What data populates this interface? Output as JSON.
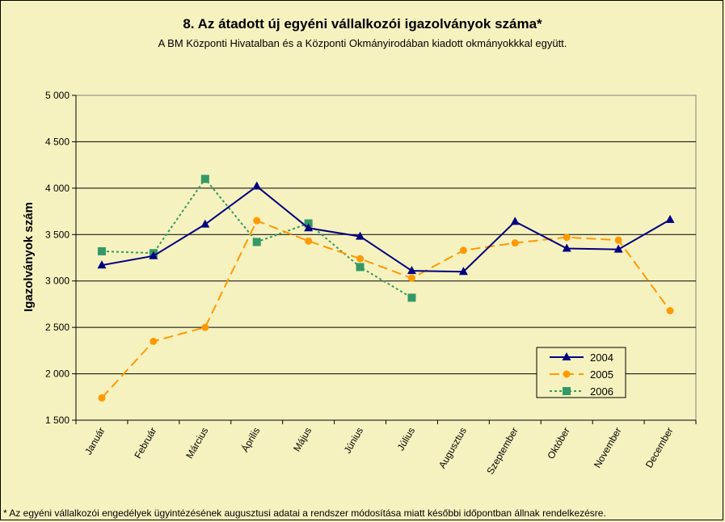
{
  "page": {
    "title": "8. Az átadott új egyéni vállalkozói  igazolványok száma*",
    "subtitle": "A BM Központi Hivatalban és a Központi Okmányirodában kiadott okmányokkkal együtt.",
    "footnote": "* Az egyéni vállalkozói engedélyek  ügyintézésének augusztusi adatai a rendszer módosítása miatt későbbi időpontban állnak rendelkezésre."
  },
  "chart_data": {
    "type": "line",
    "title": "8. Az átadott új egyéni vállalkozói  igazolványok száma*",
    "subtitle": "A BM Központi Hivatalban és a Központi Okmányirodában kiadott okmányokkkal együtt.",
    "xlabel": "",
    "ylabel": "Igazolványok szám",
    "ylim": [
      1500,
      5000
    ],
    "yticks": [
      1500,
      2000,
      2500,
      3000,
      3500,
      4000,
      4500,
      5000
    ],
    "ytick_labels": [
      "1 500",
      "2 000",
      "2 500",
      "3 000",
      "3 500",
      "4 000",
      "4 500",
      "5 000"
    ],
    "grid": true,
    "legend_position": "bottom-right",
    "plot_background": "#f6f2bf",
    "categories": [
      "Január",
      "Február",
      "Március",
      "Április",
      "Május",
      "Június",
      "Július",
      "Augusztus",
      "Szeptember",
      "Október",
      "November",
      "December"
    ],
    "series": [
      {
        "name": "2004",
        "color": "#000080",
        "marker": "triangle",
        "dash": "solid",
        "values": [
          3170,
          3270,
          3610,
          4020,
          3570,
          3480,
          3110,
          3100,
          3640,
          3350,
          3340,
          3660
        ]
      },
      {
        "name": "2005",
        "color": "#ff9900",
        "marker": "circle",
        "dash": "long-dash",
        "values": [
          1740,
          2350,
          2500,
          3650,
          3430,
          3240,
          3030,
          3330,
          3410,
          3470,
          3440,
          2680
        ]
      },
      {
        "name": "2006",
        "color": "#339966",
        "marker": "square",
        "dash": "dotted",
        "values": [
          3320,
          3300,
          4100,
          3420,
          3620,
          3150,
          2820,
          null,
          null,
          null,
          null,
          null
        ]
      }
    ]
  }
}
